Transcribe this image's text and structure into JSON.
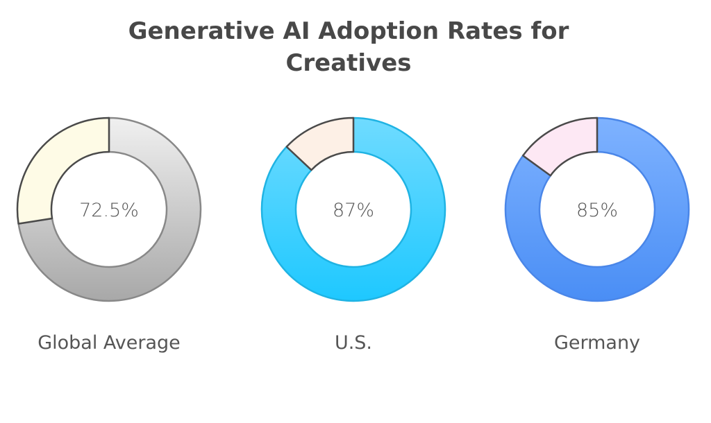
{
  "chart_data": {
    "type": "pie",
    "subtype": "donut",
    "title": "Generative AI Adoption Rates for Creatives",
    "title_lines": [
      "Generative AI Adoption Rates for",
      "Creatives"
    ],
    "unit": "%",
    "charts": [
      {
        "category": "Global Average",
        "value": 72.5,
        "remainder": 27.5,
        "center_label": "72.5%",
        "colors": {
          "main_top": "#f0f0f0",
          "main_bottom": "#a8a8a8",
          "main_stroke": "#888888",
          "rest_fill": "#fefbe6",
          "rest_stroke": "#4a4a4a"
        }
      },
      {
        "category": "U.S.",
        "value": 87,
        "remainder": 13,
        "center_label": "87%",
        "colors": {
          "main_top": "#6fdbff",
          "main_bottom": "#1ec8ff",
          "main_stroke": "#1fb3e3",
          "rest_fill": "#fdf0e6",
          "rest_stroke": "#4a4a4a"
        }
      },
      {
        "category": "Germany",
        "value": 85,
        "remainder": 15,
        "center_label": "85%",
        "colors": {
          "main_top": "#7eb2ff",
          "main_bottom": "#4a8ef5",
          "main_stroke": "#4a86e8",
          "rest_fill": "#fde8f4",
          "rest_stroke": "#4a4a4a"
        }
      }
    ]
  }
}
